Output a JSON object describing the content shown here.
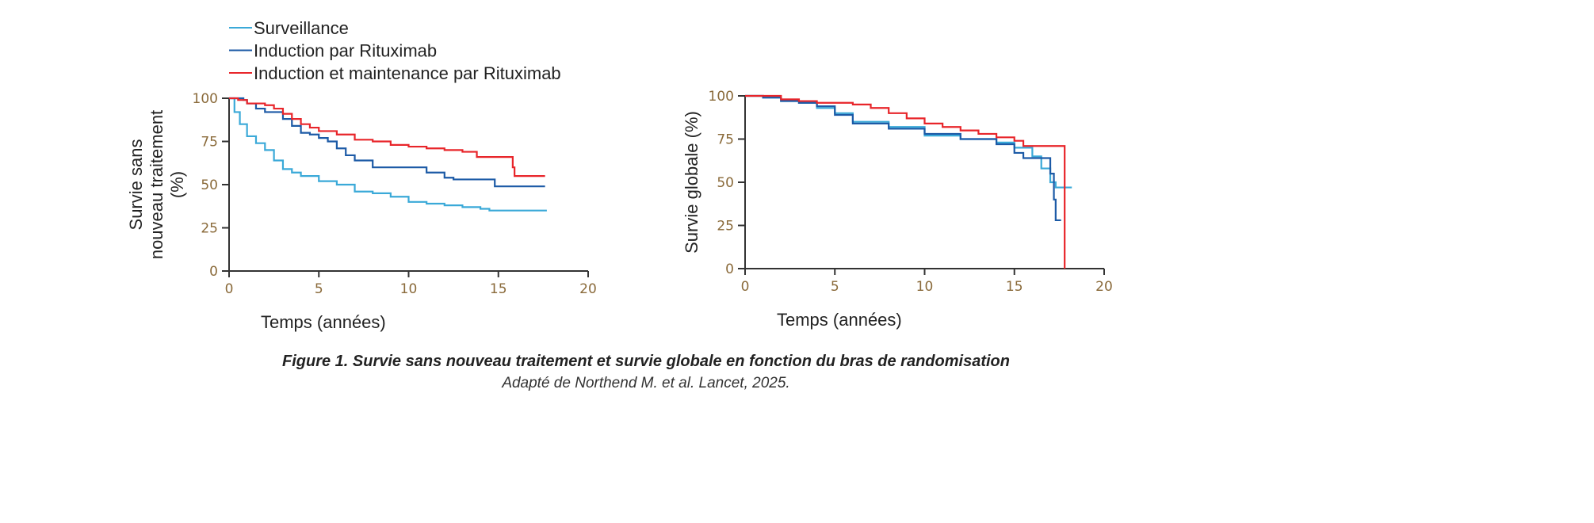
{
  "colors": {
    "surveillance": "#3aa9d8",
    "induction": "#1c5aa6",
    "maintenance": "#e8252a",
    "axis": "#333333",
    "tick": "#8a6a3a"
  },
  "legend": [
    "Surveillance",
    "Induction par Rituximab",
    "Induction et maintenance par Rituximab"
  ],
  "caption": {
    "title": "Figure 1. Survie sans nouveau traitement et survie globale en fonction du bras de randomisation",
    "source": "Adapté de Northend M. et al. Lancet, 2025."
  },
  "chart_data": [
    {
      "type": "line",
      "title": "",
      "xlabel": "Temps (années)",
      "ylabel_lines": [
        "Survie sans",
        "nouveau traitement",
        "(%)"
      ],
      "xlim": [
        0,
        20
      ],
      "ylim": [
        0,
        100
      ],
      "xticks": [
        "0",
        "5",
        "10",
        "15",
        "20"
      ],
      "yticks": [
        "0",
        "25",
        "50",
        "75",
        "100"
      ],
      "series": [
        {
          "name": "Surveillance",
          "x": [
            0,
            0.3,
            0.6,
            1,
            1.5,
            2,
            2.5,
            3,
            3.5,
            4,
            5,
            6,
            7,
            8,
            9,
            10,
            11,
            12,
            13,
            14,
            14.5,
            17.7
          ],
          "y": [
            100,
            92,
            85,
            78,
            74,
            70,
            64,
            59,
            57,
            55,
            52,
            50,
            46,
            45,
            43,
            40,
            39,
            38,
            37,
            36,
            35,
            35
          ]
        },
        {
          "name": "Induction par Rituximab",
          "x": [
            0,
            0.8,
            1,
            1.5,
            2,
            3,
            3.5,
            4,
            4.5,
            5,
            5.5,
            6,
            6.5,
            7,
            8,
            11,
            12,
            12.5,
            14.8,
            17.6
          ],
          "y": [
            100,
            99,
            97,
            94,
            92,
            88,
            84,
            80,
            79,
            77,
            75,
            71,
            67,
            64,
            60,
            57,
            54,
            53,
            49,
            49
          ]
        },
        {
          "name": "Induction et maintenance par Rituximab",
          "x": [
            0,
            0.5,
            1,
            2,
            2.5,
            3,
            3.5,
            4,
            4.5,
            5,
            6,
            7,
            8,
            9,
            10,
            11,
            12,
            13,
            13.8,
            15.8,
            15.9,
            17.6
          ],
          "y": [
            100,
            99,
            97,
            96,
            94,
            91,
            88,
            85,
            83,
            81,
            79,
            76,
            75,
            73,
            72,
            71,
            70,
            69,
            66,
            60,
            55,
            55
          ]
        }
      ]
    },
    {
      "type": "line",
      "title": "",
      "xlabel": "Temps (années)",
      "ylabel_lines": [
        "Survie globale (%)"
      ],
      "xlim": [
        0,
        20
      ],
      "ylim": [
        0,
        100
      ],
      "xticks": [
        "0",
        "5",
        "10",
        "15",
        "20"
      ],
      "yticks": [
        "0",
        "25",
        "50",
        "75",
        "100"
      ],
      "series": [
        {
          "name": "Surveillance",
          "x": [
            0,
            1,
            2,
            3,
            4,
            5,
            6,
            8,
            10,
            12,
            14,
            15,
            16,
            16.5,
            17,
            17.3,
            18.2
          ],
          "y": [
            100,
            99,
            97,
            96,
            93,
            90,
            85,
            82,
            77,
            75,
            73,
            70,
            65,
            58,
            50,
            47,
            47
          ]
        },
        {
          "name": "Induction par Rituximab",
          "x": [
            0,
            1,
            2,
            3,
            4,
            5,
            6,
            8,
            10,
            12,
            14,
            15,
            15.5,
            16.9,
            17,
            17.2,
            17.3,
            17.6
          ],
          "y": [
            100,
            99,
            97,
            96,
            94,
            89,
            84,
            81,
            78,
            75,
            72,
            67,
            64,
            64,
            55,
            40,
            28,
            28
          ]
        },
        {
          "name": "Induction et maintenance par Rituximab",
          "x": [
            0,
            2,
            3,
            4,
            6,
            7,
            8,
            9,
            10,
            11,
            12,
            13,
            14,
            15,
            15.5,
            17.8,
            17.8
          ],
          "y": [
            100,
            98,
            97,
            96,
            95,
            93,
            90,
            87,
            84,
            82,
            80,
            78,
            76,
            74,
            71,
            71,
            0
          ]
        }
      ]
    }
  ]
}
